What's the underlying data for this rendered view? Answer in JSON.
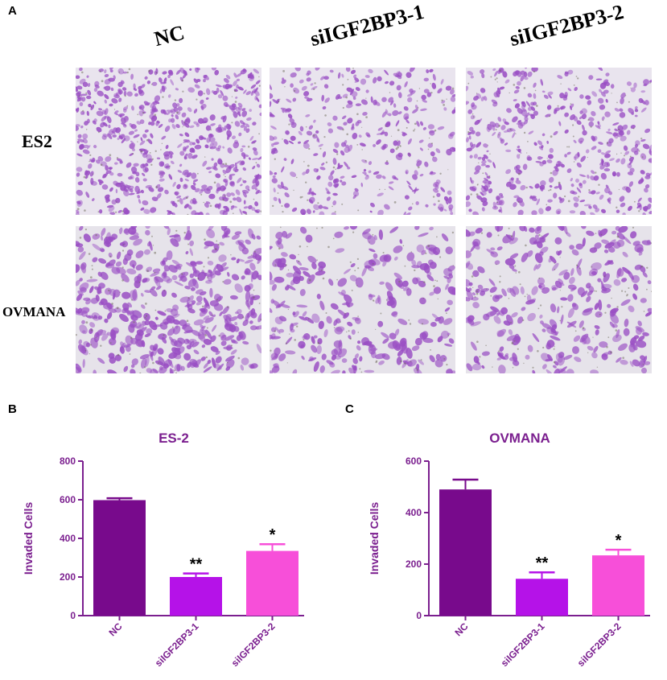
{
  "panel_a": {
    "letter": "A",
    "columns": [
      "NC",
      "siIGF2BP3-1",
      "siIGF2BP3-2"
    ],
    "rows": [
      "ES2",
      "OVMANA"
    ]
  },
  "panel_b": {
    "letter": "B"
  },
  "panel_c": {
    "letter": "C"
  },
  "colors": {
    "nc": "#780a8c",
    "si1": "#b512e8",
    "si2": "#f74fd9",
    "axis": "#7b1f8f",
    "stain": "#9a4fc4"
  },
  "chart_data": [
    {
      "type": "bar",
      "title": "ES-2",
      "ylabel": "Invaded Cells",
      "xlabel": "",
      "categories": [
        "NC",
        "siIGF2BP3-1",
        "siIGF2BP3-2"
      ],
      "values": [
        598,
        200,
        335
      ],
      "errors": [
        10,
        18,
        35
      ],
      "significance": [
        "",
        "**",
        "*"
      ],
      "ylim": [
        0,
        800
      ],
      "yticks": [
        "0",
        "200",
        "400",
        "600",
        "800"
      ],
      "grid": false
    },
    {
      "type": "bar",
      "title": "OVMANA",
      "ylabel": "Invaded Cells",
      "xlabel": "",
      "categories": [
        "NC",
        "siIGF2BP3-1",
        "siIGF2BP3-2"
      ],
      "values": [
        490,
        143,
        234
      ],
      "errors": [
        38,
        25,
        22
      ],
      "significance": [
        "",
        "**",
        "*"
      ],
      "ylim": [
        0,
        600
      ],
      "yticks": [
        "0",
        "200",
        "400",
        "600"
      ],
      "grid": false
    }
  ]
}
